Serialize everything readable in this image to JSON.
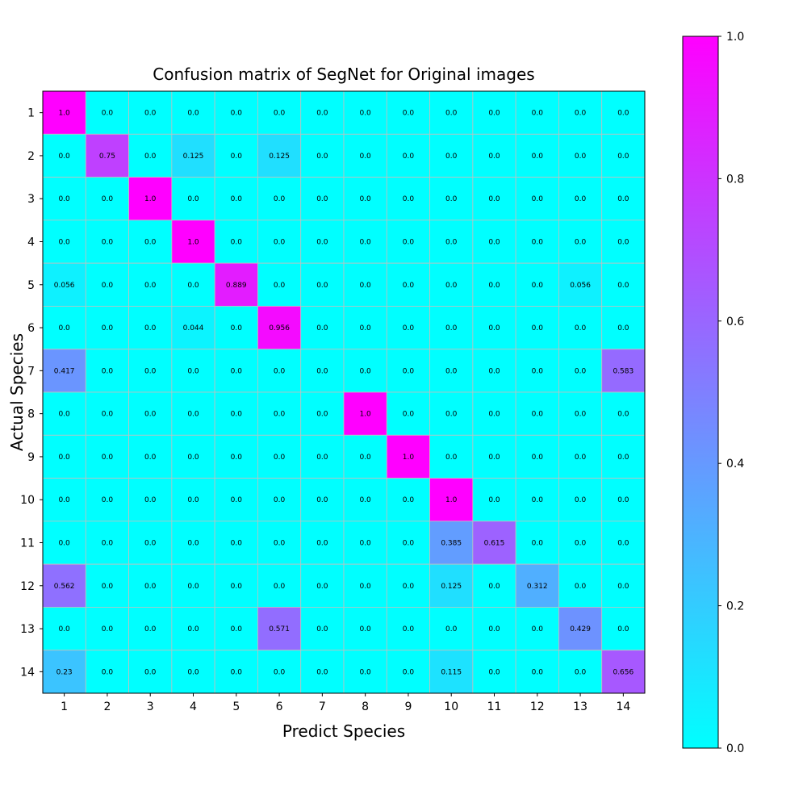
{
  "chart_data": {
    "type": "heatmap",
    "title": "Confusion matrix of SegNet for Original images",
    "xlabel": "Predict Species",
    "ylabel": "Actual Species",
    "x_categories": [
      "1",
      "2",
      "3",
      "4",
      "5",
      "6",
      "7",
      "8",
      "9",
      "10",
      "11",
      "12",
      "13",
      "14"
    ],
    "y_categories": [
      "1",
      "2",
      "3",
      "4",
      "5",
      "6",
      "7",
      "8",
      "9",
      "10",
      "11",
      "12",
      "13",
      "14"
    ],
    "matrix": [
      [
        "1.0",
        "0.0",
        "0.0",
        "0.0",
        "0.0",
        "0.0",
        "0.0",
        "0.0",
        "0.0",
        "0.0",
        "0.0",
        "0.0",
        "0.0",
        "0.0"
      ],
      [
        "0.0",
        "0.75",
        "0.0",
        "0.125",
        "0.0",
        "0.125",
        "0.0",
        "0.0",
        "0.0",
        "0.0",
        "0.0",
        "0.0",
        "0.0",
        "0.0"
      ],
      [
        "0.0",
        "0.0",
        "1.0",
        "0.0",
        "0.0",
        "0.0",
        "0.0",
        "0.0",
        "0.0",
        "0.0",
        "0.0",
        "0.0",
        "0.0",
        "0.0"
      ],
      [
        "0.0",
        "0.0",
        "0.0",
        "1.0",
        "0.0",
        "0.0",
        "0.0",
        "0.0",
        "0.0",
        "0.0",
        "0.0",
        "0.0",
        "0.0",
        "0.0"
      ],
      [
        "0.056",
        "0.0",
        "0.0",
        "0.0",
        "0.889",
        "0.0",
        "0.0",
        "0.0",
        "0.0",
        "0.0",
        "0.0",
        "0.0",
        "0.056",
        "0.0"
      ],
      [
        "0.0",
        "0.0",
        "0.0",
        "0.044",
        "0.0",
        "0.956",
        "0.0",
        "0.0",
        "0.0",
        "0.0",
        "0.0",
        "0.0",
        "0.0",
        "0.0"
      ],
      [
        "0.417",
        "0.0",
        "0.0",
        "0.0",
        "0.0",
        "0.0",
        "0.0",
        "0.0",
        "0.0",
        "0.0",
        "0.0",
        "0.0",
        "0.0",
        "0.583"
      ],
      [
        "0.0",
        "0.0",
        "0.0",
        "0.0",
        "0.0",
        "0.0",
        "0.0",
        "1.0",
        "0.0",
        "0.0",
        "0.0",
        "0.0",
        "0.0",
        "0.0"
      ],
      [
        "0.0",
        "0.0",
        "0.0",
        "0.0",
        "0.0",
        "0.0",
        "0.0",
        "0.0",
        "1.0",
        "0.0",
        "0.0",
        "0.0",
        "0.0",
        "0.0"
      ],
      [
        "0.0",
        "0.0",
        "0.0",
        "0.0",
        "0.0",
        "0.0",
        "0.0",
        "0.0",
        "0.0",
        "1.0",
        "0.0",
        "0.0",
        "0.0",
        "0.0"
      ],
      [
        "0.0",
        "0.0",
        "0.0",
        "0.0",
        "0.0",
        "0.0",
        "0.0",
        "0.0",
        "0.0",
        "0.385",
        "0.615",
        "0.0",
        "0.0",
        "0.0"
      ],
      [
        "0.562",
        "0.0",
        "0.0",
        "0.0",
        "0.0",
        "0.0",
        "0.0",
        "0.0",
        "0.0",
        "0.125",
        "0.0",
        "0.312",
        "0.0",
        "0.0"
      ],
      [
        "0.0",
        "0.0",
        "0.0",
        "0.0",
        "0.0",
        "0.571",
        "0.0",
        "0.0",
        "0.0",
        "0.0",
        "0.0",
        "0.0",
        "0.429",
        "0.0"
      ],
      [
        "0.23",
        "0.0",
        "0.0",
        "0.0",
        "0.0",
        "0.0",
        "0.0",
        "0.0",
        "0.0",
        "0.115",
        "0.0",
        "0.0",
        "0.0",
        "0.656"
      ]
    ],
    "colorbar": {
      "range": [
        0,
        1
      ],
      "ticks": [
        "0.0",
        "0.2",
        "0.4",
        "0.6",
        "0.8",
        "1.0"
      ],
      "colormap": "cool",
      "low_color": "#00ffff",
      "high_color": "#ff00ff"
    },
    "grid": true,
    "grid_color": "#c0c0c0"
  }
}
